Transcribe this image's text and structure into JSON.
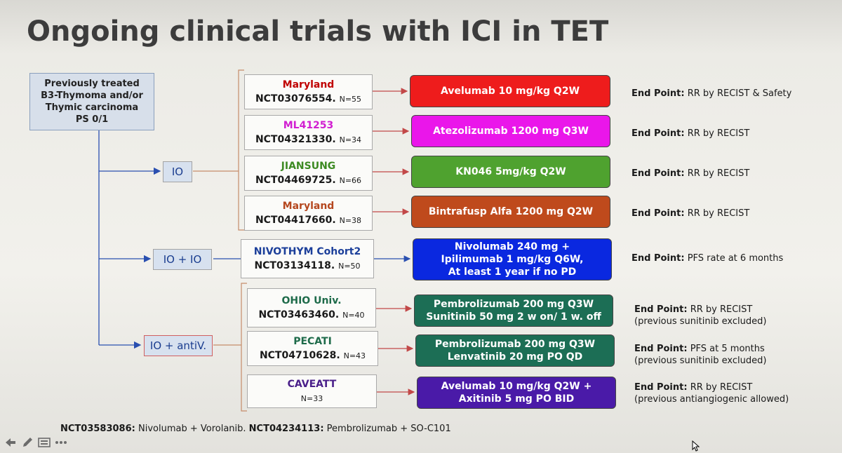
{
  "title": "Ongoing clinical trials with ICI in TET",
  "origin": {
    "lines": [
      "Previously treated",
      "B3-Thymoma and/or",
      "Thymic carcinoma",
      "PS 0/1"
    ]
  },
  "arms": [
    {
      "label": "IO"
    },
    {
      "label": "IO + IO"
    },
    {
      "label": "IO + antiV."
    }
  ],
  "trials": [
    {
      "name": "Maryland",
      "name_color": "#c00000",
      "nct": "NCT03076554.",
      "n": "N=55",
      "drug": [
        "Avelumab 10 mg/kg Q2W"
      ],
      "drug_color": "#ee1c1c",
      "endpoint_label": "End Point:",
      "endpoint": [
        "RR by RECIST & Safety"
      ]
    },
    {
      "name": "ML41253",
      "name_color": "#d11ed1",
      "nct": "NCT04321330.",
      "n": "N=34",
      "drug": [
        "Atezolizumab  1200 mg Q3W"
      ],
      "drug_color": "#ea16ea",
      "endpoint_label": "End Point:",
      "endpoint": [
        "RR by RECIST"
      ]
    },
    {
      "name": "JIANSUNG",
      "name_color": "#3c8a22",
      "nct": "NCT04469725.",
      "n": "N=66",
      "drug": [
        "KN046 5mg/kg Q2W"
      ],
      "drug_color": "#4fa22f",
      "endpoint_label": "End Point:",
      "endpoint": [
        "RR by RECIST"
      ]
    },
    {
      "name": "Maryland",
      "name_color": "#b5471f",
      "nct": "NCT04417660.",
      "n": "N=38",
      "drug": [
        "Bintrafusp Alfa 1200 mg Q2W"
      ],
      "drug_color": "#bf4a1c",
      "endpoint_label": "End Point:",
      "endpoint": [
        "RR by RECIST"
      ]
    },
    {
      "name": "NIVOTHYM Cohort2",
      "name_color": "#1c3f9a",
      "nct": "NCT03134118.",
      "n": "N=50",
      "drug": [
        "Nivolumab  240 mg +",
        "Ipilimumab 1 mg/kg Q6W,",
        "At least 1 year if no PD"
      ],
      "drug_color": "#0a28e0",
      "endpoint_label": "End Point:",
      "endpoint": [
        "PFS rate at 6 months"
      ]
    },
    {
      "name": "OHIO Univ.",
      "name_color": "#1e6b4a",
      "nct": "NCT03463460.",
      "n": "N=40",
      "drug": [
        "Pembrolizumab 200 mg Q3W",
        "Sunitinib  50 mg 2 w on/ 1 w. off"
      ],
      "drug_color": "#1c6e55",
      "endpoint_label": "End Point:",
      "endpoint": [
        "RR by RECIST",
        "(previous sunitinib excluded)"
      ]
    },
    {
      "name": "PECATI",
      "name_color": "#1e6b4a",
      "nct": "NCT04710628.",
      "n": "N=43",
      "drug": [
        "Pembrolizumab 200 mg Q3W",
        "Lenvatinib 20 mg PO QD"
      ],
      "drug_color": "#1c6e55",
      "endpoint_label": "End Point:",
      "endpoint": [
        "PFS at 5 months",
        "(previous sunitinib excluded)"
      ]
    },
    {
      "name": "CAVEATT",
      "name_color": "#4a1f8a",
      "nct": "",
      "n": "N=33",
      "drug": [
        "Avelumab 10 mg/kg Q2W +",
        "Axitinib 5 mg PO BID"
      ],
      "drug_color": "#4a1aa8",
      "endpoint_label": "End Point:",
      "endpoint": [
        "RR by RECIST",
        "(previous antiangiogenic allowed)"
      ]
    }
  ],
  "footnote": {
    "a_id": "NCT03583086:",
    "a_text": " Nivolumab + Vorolanib. ",
    "b_id": "NCT04234113:",
    "b_text": " Pembrolizumab + SO-C101"
  },
  "toolbar": {
    "icons": [
      "arrow-icon",
      "pen-icon",
      "slides-icon",
      "more-icon"
    ]
  }
}
